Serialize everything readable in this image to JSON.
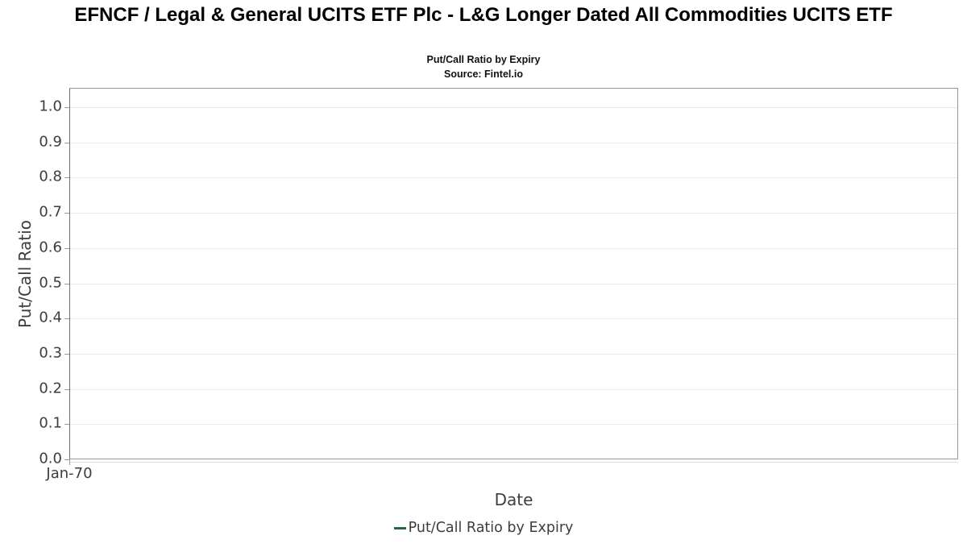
{
  "header": {
    "title": "EFNCF / Legal & General UCITS ETF Plc - L&G Longer Dated All Commodities UCITS ETF",
    "subtitle": "Put/Call Ratio by Expiry",
    "source": "Source: Fintel.io"
  },
  "chart_data": {
    "type": "line",
    "title": "EFNCF / Legal & General UCITS ETF Plc - L&G Longer Dated All Commodities UCITS ETF",
    "subtitle": "Put/Call Ratio by Expiry",
    "source": "Source: Fintel.io",
    "xlabel": "Date",
    "ylabel": "Put/Call Ratio",
    "x_tick_labels": [
      "Jan-70"
    ],
    "yticks": [
      0.0,
      0.1,
      0.2,
      0.3,
      0.4,
      0.5,
      0.6,
      0.7,
      0.8,
      0.9,
      1.0
    ],
    "ytick_labels": [
      "0.0",
      "0.1",
      "0.2",
      "0.3",
      "0.4",
      "0.5",
      "0.6",
      "0.7",
      "0.8",
      "0.9",
      "1.0"
    ],
    "ylim": [
      0,
      1.055
    ],
    "grid": true,
    "legend_position": "bottom",
    "series": [
      {
        "name": "Put/Call Ratio by Expiry",
        "color": "#256839",
        "x": [],
        "values": []
      }
    ]
  },
  "colors": {
    "series_green": "#256839",
    "gridline": "#e9e9e9",
    "plot_border": "#979797",
    "text_dark": "#3d3d3d",
    "title": "#000000"
  }
}
